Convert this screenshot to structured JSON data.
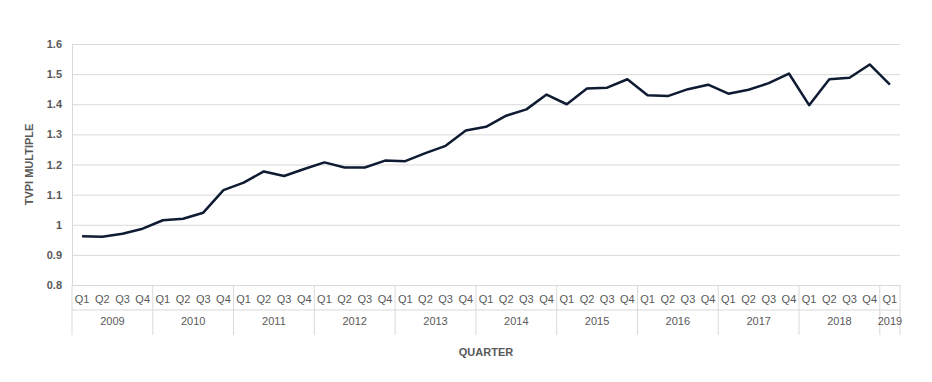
{
  "chart_data": {
    "type": "line",
    "y_label": "TVPI MULTIPLE",
    "x_label": "QUARTER",
    "categories": [
      "Q1",
      "Q2",
      "Q3",
      "Q4",
      "Q1",
      "Q2",
      "Q3",
      "Q4",
      "Q1",
      "Q2",
      "Q3",
      "Q4",
      "Q1",
      "Q2",
      "Q3",
      "Q4",
      "Q1",
      "Q2",
      "Q3",
      "Q4",
      "Q1",
      "Q2",
      "Q3",
      "Q4",
      "Q1",
      "Q2",
      "Q3",
      "Q4",
      "Q1",
      "Q2",
      "Q3",
      "Q4",
      "Q1",
      "Q2",
      "Q3",
      "Q4",
      "Q1",
      "Q2",
      "Q3",
      "Q4",
      "Q1"
    ],
    "x_groups": [
      {
        "label": "2009",
        "size": 4
      },
      {
        "label": "2010",
        "size": 4
      },
      {
        "label": "2011",
        "size": 4
      },
      {
        "label": "2012",
        "size": 4
      },
      {
        "label": "2013",
        "size": 4
      },
      {
        "label": "2014",
        "size": 4
      },
      {
        "label": "2015",
        "size": 4
      },
      {
        "label": "2016",
        "size": 4
      },
      {
        "label": "2017",
        "size": 4
      },
      {
        "label": "2018",
        "size": 4
      },
      {
        "label": "2019",
        "size": 1
      }
    ],
    "values": [
      0.962,
      0.96,
      0.97,
      0.987,
      1.015,
      1.02,
      1.04,
      1.115,
      1.14,
      1.177,
      1.162,
      1.185,
      1.207,
      1.19,
      1.19,
      1.213,
      1.211,
      1.238,
      1.262,
      1.313,
      1.325,
      1.362,
      1.383,
      1.432,
      1.4,
      1.452,
      1.455,
      1.483,
      1.43,
      1.427,
      1.45,
      1.465,
      1.435,
      1.448,
      1.47,
      1.502,
      1.397,
      1.483,
      1.488,
      1.532,
      1.465
    ],
    "color": "#0f1a33",
    "ylim": [
      0.8,
      1.6
    ],
    "yticks": [
      0.8,
      0.9,
      1,
      1.1,
      1.2,
      1.3,
      1.4,
      1.5,
      1.6
    ],
    "grid": true
  }
}
